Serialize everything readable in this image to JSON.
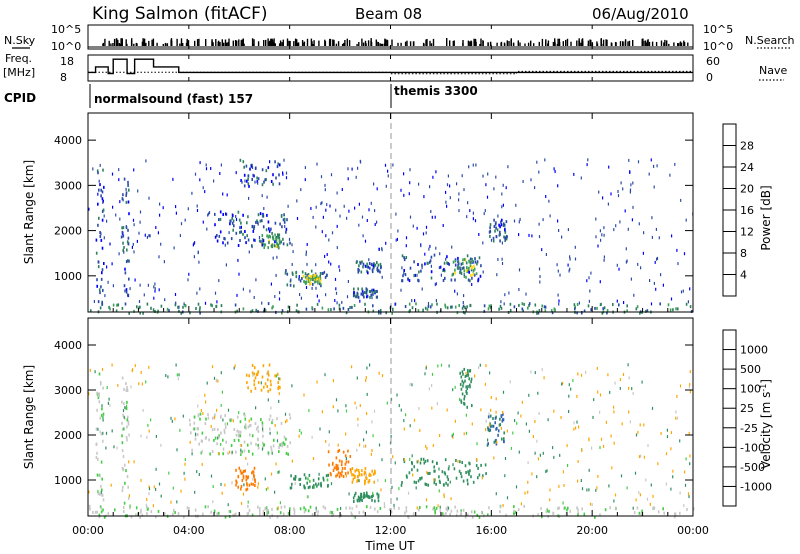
{
  "header": {
    "station": "King Salmon (fitACF)",
    "beam": "Beam 08",
    "date": "06/Aug/2010"
  },
  "summary_panels": {
    "nsky_label": "N.Sky",
    "nsearch_label": "N.Search",
    "noise_ticks": [
      "10^5",
      "10^0"
    ],
    "freq_label_line1": "Freq.",
    "freq_label_line2": "[MHz]",
    "freq_ticks": [
      "18",
      "8"
    ],
    "nave_label": "Nave",
    "nave_ticks": [
      "60",
      "0"
    ],
    "cpid_label": "CPID",
    "cpid_modes": [
      {
        "name": "normalsound (fast) 157",
        "start_hour": 0
      },
      {
        "name": "themis 3300",
        "start_hour": 12
      }
    ]
  },
  "colors": {
    "power_scale": [
      "#0000ff",
      "#2a4aa8",
      "#2f7f5f",
      "#3fa05a",
      "#ffd400",
      "#ff9a00",
      "#ff5a00",
      "#ff0000"
    ],
    "velocity_scale": [
      "#ff0000",
      "#ff7a00",
      "#ffa500",
      "#c8c8c8",
      "#c8c8c8",
      "#44cc44",
      "#2f8f5f",
      "#3060b0",
      "#2030b0"
    ]
  },
  "chart_data": [
    {
      "type": "heatmap",
      "panel": "power",
      "ylabel": "Slant Range [km]",
      "ylim": [
        200,
        4600
      ],
      "yticks": [
        "1000",
        "2000",
        "3000",
        "4000"
      ],
      "xlim": [
        0,
        24
      ],
      "colorbar_label": "Power [dB]",
      "colorbar_ticks": [
        "4",
        "8",
        "12",
        "16",
        "20",
        "24",
        "28"
      ],
      "colorbar_range": [
        0,
        32
      ],
      "blobs": [
        {
          "t0": 5.0,
          "t1": 8.0,
          "r0": 1700,
          "r1": 2450,
          "value": 6
        },
        {
          "t0": 6.8,
          "t1": 7.6,
          "r0": 1650,
          "r1": 1950,
          "value": 13
        },
        {
          "t0": 7.8,
          "t1": 9.5,
          "r0": 800,
          "r1": 1150,
          "value": 8
        },
        {
          "t0": 8.5,
          "t1": 9.2,
          "r0": 850,
          "r1": 1050,
          "value": 16
        },
        {
          "t0": 10.6,
          "t1": 11.6,
          "r0": 1100,
          "r1": 1350,
          "value": 7
        },
        {
          "t0": 10.5,
          "t1": 11.5,
          "r0": 550,
          "r1": 750,
          "value": 7
        },
        {
          "t0": 12.4,
          "t1": 15.6,
          "r0": 900,
          "r1": 1500,
          "value": 6
        },
        {
          "t0": 14.4,
          "t1": 15.4,
          "r0": 1000,
          "r1": 1400,
          "value": 14
        },
        {
          "t0": 15.9,
          "t1": 16.6,
          "r0": 1800,
          "r1": 2300,
          "value": 7
        },
        {
          "t0": 6.0,
          "t1": 7.6,
          "r0": 3000,
          "r1": 3600,
          "value": 6
        },
        {
          "t0": 0.3,
          "t1": 0.6,
          "r0": 200,
          "r1": 3500,
          "value": 6
        },
        {
          "t0": 1.3,
          "t1": 1.6,
          "r0": 200,
          "r1": 3300,
          "value": 6
        },
        {
          "t0": 0.0,
          "t1": 24.0,
          "r0": 200,
          "r1": 420,
          "value": 10
        }
      ]
    },
    {
      "type": "heatmap",
      "panel": "velocity",
      "ylabel": "Slant Range [km]",
      "ylim": [
        200,
        4600
      ],
      "yticks": [
        "1000",
        "2000",
        "3000",
        "4000"
      ],
      "xlim": [
        0,
        24
      ],
      "xlabel": "Time UT",
      "xticks": [
        "00:00",
        "04:00",
        "08:00",
        "12:00",
        "16:00",
        "20:00",
        "00:00"
      ],
      "colorbar_label": "Velocity [m s",
      "colorbar_label_sup": "-1",
      "colorbar_ticks": [
        "-1000",
        "-500",
        "-100",
        "-25",
        "25",
        "100",
        "500",
        "1000"
      ],
      "blobs": [
        {
          "t0": 4.0,
          "t1": 8.0,
          "r0": 1600,
          "r1": 2500,
          "value": 0
        },
        {
          "t0": 5.8,
          "t1": 6.6,
          "r0": 800,
          "r1": 1300,
          "value": -600
        },
        {
          "t0": 8.0,
          "t1": 9.5,
          "r0": 850,
          "r1": 1150,
          "value": 150
        },
        {
          "t0": 9.5,
          "t1": 10.4,
          "r0": 1100,
          "r1": 1700,
          "value": -600
        },
        {
          "t0": 10.4,
          "t1": 11.4,
          "r0": 950,
          "r1": 1300,
          "value": -200
        },
        {
          "t0": 10.5,
          "t1": 11.5,
          "r0": 550,
          "r1": 750,
          "value": 300
        },
        {
          "t0": 12.4,
          "t1": 15.8,
          "r0": 900,
          "r1": 1500,
          "value": 400
        },
        {
          "t0": 15.8,
          "t1": 16.5,
          "r0": 1700,
          "r1": 2500,
          "value": 500
        },
        {
          "t0": 14.7,
          "t1": 15.2,
          "r0": 2600,
          "r1": 3500,
          "value": 400
        },
        {
          "t0": 6.2,
          "t1": 7.6,
          "r0": 3000,
          "r1": 3600,
          "value": -200
        },
        {
          "t0": 0.3,
          "t1": 0.6,
          "r0": 200,
          "r1": 3500,
          "value": 0
        },
        {
          "t0": 1.3,
          "t1": 1.6,
          "r0": 200,
          "r1": 3300,
          "value": 0
        },
        {
          "t0": 0.0,
          "t1": 24.0,
          "r0": 200,
          "r1": 450,
          "value": 0
        }
      ]
    }
  ],
  "summary_series": {
    "freq_steps": [
      {
        "t0": 0.0,
        "t1": 0.3,
        "mhz": 11
      },
      {
        "t0": 0.3,
        "t1": 0.8,
        "mhz": 13.5
      },
      {
        "t0": 0.8,
        "t1": 1.0,
        "mhz": 10.5
      },
      {
        "t0": 1.0,
        "t1": 1.55,
        "mhz": 17
      },
      {
        "t0": 1.55,
        "t1": 1.85,
        "mhz": 10.5
      },
      {
        "t0": 1.85,
        "t1": 2.6,
        "mhz": 17
      },
      {
        "t0": 2.6,
        "t1": 3.6,
        "mhz": 13.5
      },
      {
        "t0": 3.6,
        "t1": 24.0,
        "mhz": 11
      }
    ],
    "nave_steps": [
      {
        "t0": 0.0,
        "t1": 12.0,
        "value": 22
      },
      {
        "t0": 12.0,
        "t1": 17.0,
        "value": 18
      },
      {
        "t0": 17.0,
        "t1": 24.0,
        "value": 24
      }
    ]
  }
}
